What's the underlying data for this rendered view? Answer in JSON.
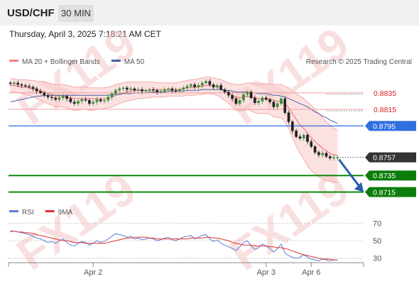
{
  "header": {
    "symbol": "USD/CHF",
    "timeframe": "30 MIN"
  },
  "datetime": "Thursday, April 3, 2025 7:18:21 AM CET",
  "watermark": "FX119",
  "chart_data": {
    "type": "line",
    "price_panel": {
      "legend": [
        {
          "label": "MA 20 + Bollinger Bands",
          "color": "#f08080"
        },
        {
          "label": "MA 50",
          "color": "#4a5fa0"
        }
      ],
      "credit": "Research © 2025 Trading Central",
      "levels": [
        {
          "value": 0.8835,
          "label": "0.8835",
          "style": "red-text",
          "line": "#f0a0a0"
        },
        {
          "value": 0.8815,
          "label": "0.8815",
          "style": "red-text",
          "line": "#f0a0a0"
        },
        {
          "value": 0.8795,
          "label": "0.8795",
          "style": "blue-box",
          "line": "#2f6fdf"
        },
        {
          "value": 0.8757,
          "label": "0.8757",
          "style": "dark-box",
          "line": "#555555"
        },
        {
          "value": 0.8735,
          "label": "0.8735",
          "style": "green-box",
          "line": "#0a8a0a"
        },
        {
          "value": 0.8715,
          "label": "0.8715",
          "style": "green-box",
          "line": "#0a8a0a"
        }
      ],
      "ylim": [
        0.87,
        0.887
      ],
      "closes": [
        0.8846,
        0.8847,
        0.8845,
        0.8844,
        0.8843,
        0.8842,
        0.884,
        0.8837,
        0.8835,
        0.8832,
        0.883,
        0.8829,
        0.8827,
        0.8829,
        0.8831,
        0.8828,
        0.8824,
        0.8822,
        0.8825,
        0.8827,
        0.8826,
        0.8822,
        0.8824,
        0.8827,
        0.8825,
        0.8826,
        0.883,
        0.8834,
        0.8838,
        0.884,
        0.8841,
        0.8839,
        0.884,
        0.8838,
        0.8839,
        0.8837,
        0.8838,
        0.8839,
        0.8838,
        0.8836,
        0.8837,
        0.8839,
        0.884,
        0.8838,
        0.8837,
        0.8839,
        0.8841,
        0.8843,
        0.8845,
        0.8842,
        0.8844,
        0.8847,
        0.8849,
        0.8845,
        0.8842,
        0.8844,
        0.8839,
        0.8836,
        0.8832,
        0.8828,
        0.8822,
        0.8826,
        0.8833,
        0.8836,
        0.8829,
        0.8823,
        0.8825,
        0.8829,
        0.8827,
        0.8824,
        0.8818,
        0.8822,
        0.8828,
        0.8811,
        0.88,
        0.8789,
        0.8782,
        0.878,
        0.8784,
        0.8776,
        0.877,
        0.8763,
        0.876,
        0.8762,
        0.8758,
        0.8756,
        0.8757,
        0.8757
      ],
      "bb_upper": [
        0.8852,
        0.8852,
        0.8851,
        0.8851,
        0.8851,
        0.885,
        0.885,
        0.8849,
        0.8849,
        0.8848,
        0.8847,
        0.8846,
        0.8845,
        0.8845,
        0.8845,
        0.8844,
        0.8843,
        0.8842,
        0.8842,
        0.8842,
        0.8842,
        0.8841,
        0.8841,
        0.8841,
        0.8841,
        0.8841,
        0.8842,
        0.8843,
        0.8845,
        0.8846,
        0.8847,
        0.8848,
        0.8848,
        0.8848,
        0.8848,
        0.8848,
        0.8848,
        0.8848,
        0.8848,
        0.8847,
        0.8847,
        0.8847,
        0.8847,
        0.8847,
        0.8847,
        0.8848,
        0.8849,
        0.885,
        0.8851,
        0.8851,
        0.8852,
        0.8853,
        0.8854,
        0.8854,
        0.8853,
        0.8852,
        0.8851,
        0.8849,
        0.8847,
        0.8846,
        0.8845,
        0.8845,
        0.8846,
        0.8847,
        0.8847,
        0.8846,
        0.8846,
        0.8846,
        0.8846,
        0.8846,
        0.8845,
        0.8845,
        0.8845,
        0.8843,
        0.8841,
        0.8838,
        0.8834,
        0.8831,
        0.8828,
        0.8824,
        0.882,
        0.8815,
        0.881,
        0.8805,
        0.88,
        0.8796,
        0.8792,
        0.879
      ],
      "bb_lower": [
        0.8836,
        0.8836,
        0.8835,
        0.8834,
        0.8833,
        0.8832,
        0.883,
        0.8828,
        0.8826,
        0.8824,
        0.8822,
        0.882,
        0.8818,
        0.8818,
        0.8818,
        0.8817,
        0.8815,
        0.8814,
        0.8814,
        0.8815,
        0.8815,
        0.8814,
        0.8814,
        0.8815,
        0.8815,
        0.8816,
        0.8817,
        0.8818,
        0.882,
        0.8822,
        0.8824,
        0.8825,
        0.8826,
        0.8827,
        0.8828,
        0.8828,
        0.8829,
        0.8829,
        0.883,
        0.883,
        0.883,
        0.883,
        0.8831,
        0.8831,
        0.8831,
        0.8831,
        0.8831,
        0.8832,
        0.8832,
        0.8832,
        0.8833,
        0.8833,
        0.8834,
        0.8834,
        0.8833,
        0.8832,
        0.8829,
        0.8826,
        0.8822,
        0.8818,
        0.8814,
        0.8813,
        0.8814,
        0.8815,
        0.8813,
        0.8811,
        0.881,
        0.881,
        0.881,
        0.8809,
        0.8806,
        0.8805,
        0.8805,
        0.88,
        0.8792,
        0.8781,
        0.8771,
        0.8762,
        0.8755,
        0.8747,
        0.8741,
        0.8737,
        0.8733,
        0.8731,
        0.8729,
        0.8728,
        0.8727,
        0.8727
      ],
      "ma20": [
        0.8844,
        0.8844,
        0.8843,
        0.8842,
        0.8842,
        0.8841,
        0.884,
        0.8839,
        0.8837,
        0.8836,
        0.8835,
        0.8833,
        0.8832,
        0.8831,
        0.8831,
        0.883,
        0.8829,
        0.8828,
        0.8828,
        0.8828,
        0.8828,
        0.8828,
        0.8828,
        0.8828,
        0.8828,
        0.8828,
        0.8829,
        0.883,
        0.8832,
        0.8834,
        0.8835,
        0.8836,
        0.8837,
        0.8838,
        0.8838,
        0.8838,
        0.8838,
        0.8838,
        0.8839,
        0.8839,
        0.8839,
        0.8839,
        0.8839,
        0.8839,
        0.8839,
        0.8839,
        0.884,
        0.8841,
        0.8841,
        0.8842,
        0.8842,
        0.8843,
        0.8844,
        0.8844,
        0.8843,
        0.8842,
        0.884,
        0.8838,
        0.8835,
        0.8832,
        0.883,
        0.8829,
        0.883,
        0.8831,
        0.883,
        0.8829,
        0.8828,
        0.8828,
        0.8828,
        0.8827,
        0.8826,
        0.8825,
        0.8825,
        0.8822,
        0.8817,
        0.881,
        0.8803,
        0.8796,
        0.8792,
        0.8786,
        0.8781,
        0.8776,
        0.8772,
        0.8768,
        0.8765,
        0.8762,
        0.876,
        0.8759
      ],
      "ma50": [
        0.8824,
        0.8825,
        0.8826,
        0.8827,
        0.8828,
        0.8829,
        0.883,
        0.8831,
        0.8831,
        0.8832,
        0.8832,
        0.8832,
        0.8832,
        0.8832,
        0.8832,
        0.8832,
        0.8832,
        0.8832,
        0.8832,
        0.8832,
        0.8832,
        0.8832,
        0.8832,
        0.8832,
        0.8832,
        0.8832,
        0.8832,
        0.8833,
        0.8833,
        0.8833,
        0.8834,
        0.8834,
        0.8834,
        0.8835,
        0.8835,
        0.8835,
        0.8835,
        0.8836,
        0.8836,
        0.8836,
        0.8836,
        0.8836,
        0.8837,
        0.8837,
        0.8837,
        0.8837,
        0.8837,
        0.8838,
        0.8838,
        0.8838,
        0.8838,
        0.8839,
        0.8839,
        0.8839,
        0.8839,
        0.8839,
        0.8839,
        0.8838,
        0.8838,
        0.8837,
        0.8836,
        0.8836,
        0.8836,
        0.8836,
        0.8835,
        0.8835,
        0.8834,
        0.8834,
        0.8834,
        0.8833,
        0.8832,
        0.8832,
        0.8831,
        0.883,
        0.8828,
        0.8826,
        0.8824,
        0.8822,
        0.882,
        0.8818,
        0.8815,
        0.8812,
        0.881,
        0.8807,
        0.8805,
        0.8802,
        0.88,
        0.8798
      ]
    },
    "rsi_panel": {
      "legend": [
        {
          "label": "RSI",
          "color": "#5b7fd6"
        },
        {
          "label": "9MA",
          "color": "#e03030"
        }
      ],
      "ticks": [
        70,
        50,
        30
      ],
      "ylim": [
        20,
        80
      ],
      "rsi": [
        60,
        61,
        60,
        59,
        58,
        57,
        55,
        53,
        52,
        50,
        48,
        49,
        47,
        50,
        52,
        48,
        45,
        44,
        47,
        49,
        48,
        45,
        47,
        50,
        48,
        49,
        52,
        55,
        58,
        57,
        56,
        54,
        55,
        52,
        53,
        51,
        52,
        53,
        52,
        50,
        51,
        53,
        54,
        51,
        50,
        52,
        54,
        55,
        56,
        52,
        54,
        56,
        57,
        52,
        49,
        51,
        47,
        45,
        43,
        41,
        39,
        43,
        48,
        50,
        44,
        40,
        42,
        46,
        44,
        41,
        37,
        41,
        46,
        36,
        33,
        31,
        30,
        31,
        34,
        31,
        29,
        28,
        27,
        29,
        28,
        27,
        28,
        28
      ],
      "ma9": [
        61,
        61,
        60,
        60,
        59,
        59,
        58,
        57,
        56,
        55,
        54,
        53,
        52,
        51,
        50,
        50,
        49,
        48,
        48,
        48,
        47,
        47,
        47,
        47,
        47,
        47,
        48,
        49,
        50,
        51,
        52,
        53,
        53,
        54,
        54,
        54,
        54,
        53,
        53,
        52,
        52,
        52,
        52,
        52,
        52,
        52,
        52,
        52,
        53,
        53,
        53,
        53,
        54,
        54,
        53,
        53,
        52,
        51,
        50,
        48,
        47,
        46,
        45,
        45,
        45,
        44,
        44,
        44,
        44,
        43,
        43,
        42,
        42,
        41,
        40,
        38,
        37,
        35,
        34,
        33,
        32,
        31,
        30,
        29,
        29,
        29,
        28,
        28
      ]
    },
    "x_ticks": [
      {
        "index": 22,
        "label": "Apr 2"
      },
      {
        "index": 68,
        "label": "Apr 3"
      },
      {
        "index": 80,
        "label": "Apr 6"
      }
    ],
    "forecast_arrow": {
      "from": 0.8757,
      "to": 0.8715
    }
  }
}
